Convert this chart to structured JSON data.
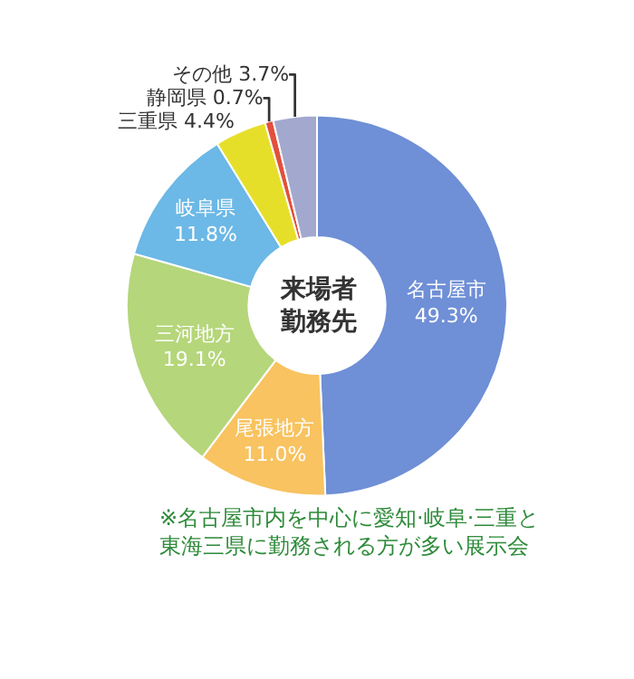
{
  "chart_data": {
    "type": "donut",
    "categories": [
      "名古屋市",
      "尾張地方",
      "三河地方",
      "岐阜県",
      "三重県",
      "静岡県",
      "その他"
    ],
    "values": [
      49.3,
      11.0,
      19.1,
      11.8,
      4.4,
      0.7,
      3.7
    ],
    "colors": [
      "#6f8fd6",
      "#f8c360",
      "#b5d67a",
      "#6cb8e6",
      "#e6df2a",
      "#e2503c",
      "#a3a8cf"
    ],
    "value_labels": [
      "49.3%",
      "11.0%",
      "19.1%",
      "11.8%",
      "4.4%",
      "0.7%",
      "3.7%"
    ],
    "annotations": [
      "来場者勤務先",
      "※名古屋市内を中心に愛知·岐阜·三重と東海三県に勤務される方が多い展示会"
    ]
  }
}
